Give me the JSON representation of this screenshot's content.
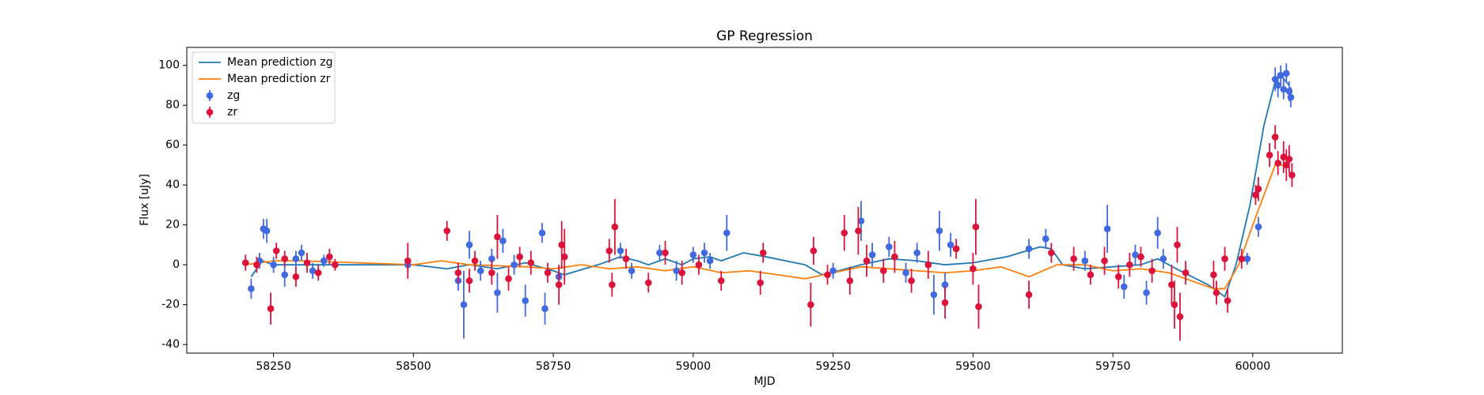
{
  "chart_data": {
    "type": "line",
    "title": "GP Regression",
    "xlabel": "MJD",
    "ylabel": "Flux [uJy]",
    "xlim": [
      58095,
      60160
    ],
    "ylim": [
      -44.3,
      109
    ],
    "xticks": [
      58250,
      58500,
      58750,
      59000,
      59250,
      59500,
      59750,
      60000
    ],
    "yticks": [
      -40,
      -20,
      0,
      20,
      40,
      60,
      80,
      100
    ],
    "grid": false,
    "legend": "upper left",
    "series": [
      {
        "name": "Mean prediction zg",
        "type": "line",
        "color": "#1f77b4",
        "x": [
          58210,
          58230,
          58250,
          58300,
          58400,
          58500,
          58560,
          58600,
          58650,
          58700,
          58750,
          58770,
          58830,
          58870,
          58900,
          58920,
          58950,
          58980,
          59000,
          59030,
          59050,
          59090,
          59130,
          59200,
          59230,
          59260,
          59300,
          59350,
          59400,
          59450,
          59500,
          59560,
          59620,
          59640,
          59660,
          59700,
          59750,
          59800,
          59830,
          59870,
          59920,
          59950,
          59970,
          59995,
          60020,
          60040,
          60050,
          60065
        ],
        "values": [
          -6,
          2,
          0,
          0,
          0,
          0,
          -2,
          0,
          -2,
          1,
          -3,
          -5,
          0,
          4,
          2,
          0,
          3,
          0,
          3,
          4,
          2,
          6,
          4,
          0,
          -5,
          -3,
          0,
          3,
          2,
          0,
          1,
          4,
          9,
          8,
          0,
          -2,
          -1,
          0,
          3,
          -3,
          -10,
          -16,
          0,
          30,
          70,
          92,
          95,
          90
        ]
      },
      {
        "name": "Mean prediction zr",
        "type": "line",
        "color": "#ff7f0e",
        "x": [
          58200,
          58250,
          58300,
          58400,
          58500,
          58550,
          58600,
          58700,
          58750,
          58800,
          58850,
          58900,
          58950,
          59000,
          59050,
          59100,
          59150,
          59200,
          59250,
          59300,
          59400,
          59450,
          59500,
          59550,
          59600,
          59650,
          59700,
          59750,
          59800,
          59850,
          59930,
          59950,
          59975,
          60000,
          60020,
          60040,
          60065
        ],
        "values": [
          0,
          2,
          2,
          1,
          0,
          2,
          0,
          -1,
          -2,
          0,
          -2,
          -1,
          -3,
          -1,
          -4,
          -3,
          -5,
          -7,
          -4,
          -1,
          -3,
          -4,
          -3,
          -1,
          -6,
          0,
          0,
          -3,
          -2,
          -4,
          -12,
          -12,
          0,
          20,
          35,
          50,
          50
        ]
      },
      {
        "name": "zg",
        "type": "errorbar",
        "color": "#4169e1",
        "x": [
          58210,
          58225,
          58232,
          58238,
          58250,
          58270,
          58290,
          58300,
          58320,
          58340,
          58490,
          58580,
          58590,
          58600,
          58620,
          58640,
          58650,
          58660,
          58680,
          58700,
          58730,
          58735,
          58760,
          58870,
          58890,
          58940,
          58970,
          59000,
          59020,
          59030,
          59060,
          59250,
          59300,
          59320,
          59350,
          59380,
          59400,
          59430,
          59440,
          59450,
          59460,
          59600,
          59630,
          59700,
          59740,
          59770,
          59790,
          59810,
          59830,
          59840,
          59990,
          60010,
          60040,
          60045,
          60050,
          60055,
          60060,
          60065,
          60068
        ],
        "values": [
          -12,
          2,
          18,
          17,
          0,
          -5,
          3,
          6,
          -3,
          2,
          0,
          -8,
          -20,
          10,
          -3,
          3,
          -14,
          12,
          0,
          -18,
          16,
          -22,
          -6,
          7,
          -3,
          6,
          -3,
          5,
          6,
          2,
          16,
          -3,
          22,
          5,
          9,
          -4,
          6,
          -15,
          17,
          -10,
          10,
          8,
          13,
          2,
          18,
          -11,
          5,
          -14,
          16,
          3,
          3,
          19,
          93,
          90,
          95,
          88,
          96,
          87,
          84
        ],
        "errors": [
          5,
          4,
          5,
          6,
          4,
          6,
          4,
          4,
          4,
          3,
          4,
          5,
          17,
          7,
          5,
          5,
          10,
          6,
          5,
          8,
          5,
          8,
          5,
          4,
          4,
          4,
          5,
          4,
          5,
          4,
          9,
          4,
          10,
          6,
          5,
          5,
          5,
          10,
          10,
          6,
          6,
          5,
          5,
          5,
          12,
          6,
          5,
          6,
          8,
          5,
          3,
          5,
          6,
          6,
          5,
          5,
          5,
          5,
          5
        ]
      },
      {
        "name": "zr",
        "type": "errorbar",
        "color": "#dc143c",
        "x": [
          58200,
          58220,
          58245,
          58255,
          58270,
          58290,
          58310,
          58330,
          58350,
          58360,
          58490,
          58560,
          58580,
          58600,
          58610,
          58640,
          58650,
          58670,
          58690,
          58710,
          58740,
          58760,
          58765,
          58770,
          58850,
          58855,
          58860,
          58880,
          58920,
          58950,
          58980,
          59010,
          59050,
          59120,
          59125,
          59210,
          59215,
          59240,
          59270,
          59280,
          59295,
          59310,
          59340,
          59360,
          59390,
          59420,
          59450,
          59470,
          59500,
          59505,
          59510,
          59600,
          59640,
          59680,
          59710,
          59735,
          59760,
          59780,
          59800,
          59820,
          59855,
          59860,
          59865,
          59870,
          59880,
          59930,
          59935,
          59950,
          59955,
          59980,
          60005,
          60010,
          60030,
          60040,
          60045,
          60055,
          60060,
          60065,
          60070
        ],
        "values": [
          1,
          0,
          -22,
          7,
          3,
          -6,
          1,
          -4,
          4,
          0,
          2,
          17,
          -4,
          -8,
          2,
          -4,
          14,
          -7,
          4,
          1,
          -4,
          -10,
          10,
          4,
          7,
          -10,
          19,
          3,
          -9,
          6,
          -4,
          0,
          -8,
          -9,
          6,
          -20,
          7,
          -5,
          16,
          -8,
          17,
          2,
          -3,
          4,
          -8,
          0,
          -19,
          8,
          -2,
          19,
          -21,
          -15,
          6,
          3,
          -5,
          2,
          -6,
          0,
          4,
          -3,
          -10,
          -20,
          10,
          -26,
          -4,
          -5,
          -14,
          3,
          -18,
          3,
          35,
          38,
          55,
          64,
          51,
          54,
          50,
          53,
          45
        ],
        "errors": [
          4,
          4,
          8,
          4,
          4,
          5,
          5,
          4,
          4,
          3,
          9,
          5,
          5,
          6,
          5,
          6,
          11,
          6,
          5,
          6,
          5,
          10,
          12,
          14,
          6,
          6,
          14,
          5,
          5,
          6,
          6,
          5,
          5,
          6,
          5,
          11,
          7,
          5,
          9,
          7,
          12,
          8,
          6,
          8,
          6,
          7,
          8,
          5,
          8,
          14,
          11,
          7,
          5,
          6,
          5,
          7,
          6,
          6,
          5,
          6,
          10,
          12,
          9,
          12,
          6,
          7,
          6,
          6,
          6,
          5,
          5,
          6,
          6,
          6,
          6,
          8,
          8,
          7,
          6
        ]
      }
    ]
  }
}
